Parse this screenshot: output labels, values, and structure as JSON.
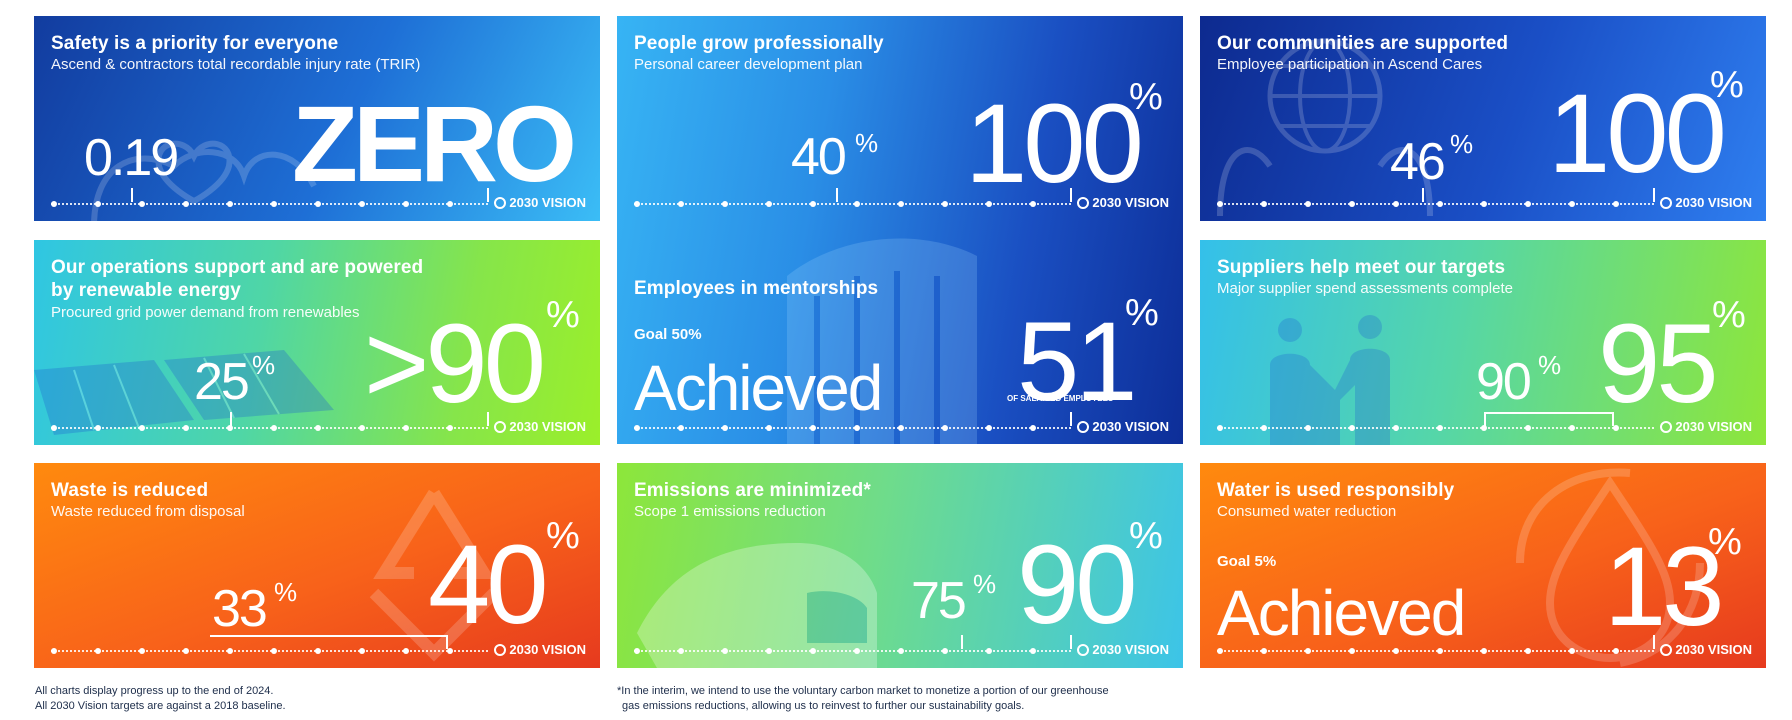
{
  "cards": {
    "safety": {
      "title": "Safety is a priority for everyone",
      "subtitle": "Ascend & contractors total recordable injury rate (TRIR)",
      "current": "0.19",
      "target": "ZERO",
      "vision": "2030 VISION"
    },
    "people": {
      "title": "People grow professionally",
      "subtitle": "Personal career development plan",
      "current": "40",
      "target": "100",
      "pct": "%",
      "vision": "2030 VISION"
    },
    "mentorship": {
      "title": "Employees in mentorships",
      "goal": "Goal 50%",
      "achieved": "Achieved",
      "target": "51",
      "pct": "%",
      "note": "OF SALARIED EMPLOYEES",
      "vision": "2030 VISION"
    },
    "communities": {
      "title": "Our communities are supported",
      "subtitle": "Employee participation in Ascend Cares",
      "current": "46",
      "target": "100",
      "pct": "%",
      "vision": "2030 VISION"
    },
    "renewable": {
      "title": "Our operations support and are powered",
      "title2": "by renewable energy",
      "subtitle": "Procured grid power demand from renewables",
      "current": "25",
      "target": ">90",
      "pct": "%",
      "vision": "2030 VISION"
    },
    "suppliers": {
      "title": "Suppliers help meet our targets",
      "subtitle": "Major supplier spend assessments complete",
      "current": "90",
      "target": "95",
      "pct": "%",
      "vision": "2030 VISION"
    },
    "waste": {
      "title": "Waste is reduced",
      "subtitle": "Waste reduced from disposal",
      "current": "33",
      "target": "40",
      "pct": "%",
      "vision": "2030 VISION"
    },
    "emissions": {
      "title": "Emissions are minimized*",
      "subtitle": "Scope 1 emissions reduction",
      "current": "75",
      "target": "90",
      "pct": "%",
      "vision": "2030 VISION"
    },
    "water": {
      "title": "Water is used responsibly",
      "subtitle": "Consumed water reduction",
      "goal": "Goal 5%",
      "achieved": "Achieved",
      "target": "13",
      "pct": "%",
      "vision": "2030 VISION"
    }
  },
  "footnotes": {
    "left1": "All charts display progress up to the end of 2024.",
    "left2": "All 2030 Vision targets are against a 2018 baseline.",
    "right1": "*In the interim, we intend to use the voluntary carbon market to monetize a portion of our greenhouse",
    "right2": "gas emissions reductions, allowing us to reinvest to further our sustainability goals."
  },
  "colors": {
    "blue_dark": "#0b2f9a",
    "blue_light": "#39b8f5",
    "green": "#8be62c",
    "teal": "#2fc2e0",
    "orange": "#ff7d0a",
    "red": "#e8341c"
  }
}
